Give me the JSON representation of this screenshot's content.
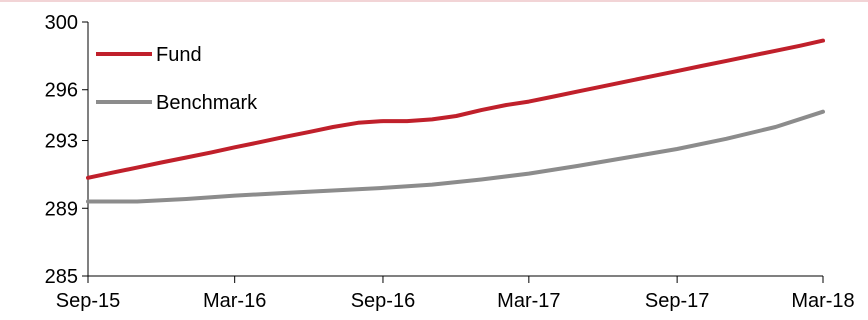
{
  "chart_data": {
    "type": "line",
    "title": "",
    "xlabel": "",
    "ylabel": "",
    "ylim": [
      285,
      300
    ],
    "yticks": [
      {
        "value": 285,
        "label": "285"
      },
      {
        "value": 289,
        "label": "289"
      },
      {
        "value": 293,
        "label": "293"
      },
      {
        "value": 296,
        "label": "296"
      },
      {
        "value": 300,
        "label": "300"
      }
    ],
    "xlim": [
      "2015-09-01",
      "2018-03-01"
    ],
    "xticks": [
      {
        "value": "2015-09-01",
        "label": "Sep-15"
      },
      {
        "value": "2016-03-01",
        "label": "Mar-16"
      },
      {
        "value": "2016-09-01",
        "label": "Sep-16"
      },
      {
        "value": "2017-03-01",
        "label": "Mar-17"
      },
      {
        "value": "2017-09-01",
        "label": "Sep-17"
      },
      {
        "value": "2018-03-01",
        "label": "Mar-18"
      }
    ],
    "grid": false,
    "legend": "top-left",
    "series": [
      {
        "name": "Fund",
        "color": "#c0202b",
        "points": [
          [
            "2015-09-01",
            290.8
          ],
          [
            "2015-10-01",
            291.1
          ],
          [
            "2015-11-01",
            291.4
          ],
          [
            "2015-12-01",
            291.7
          ],
          [
            "2016-01-01",
            292.0
          ],
          [
            "2016-02-01",
            292.3
          ],
          [
            "2016-03-01",
            292.6
          ],
          [
            "2016-04-01",
            292.9
          ],
          [
            "2016-05-01",
            293.2
          ],
          [
            "2016-06-01",
            293.5
          ],
          [
            "2016-07-01",
            293.8
          ],
          [
            "2016-08-01",
            294.05
          ],
          [
            "2016-09-01",
            294.15
          ],
          [
            "2016-10-01",
            294.15
          ],
          [
            "2016-11-01",
            294.25
          ],
          [
            "2016-12-01",
            294.45
          ],
          [
            "2017-01-01",
            294.8
          ],
          [
            "2017-02-01",
            295.1
          ],
          [
            "2017-03-01",
            295.3
          ],
          [
            "2017-04-01",
            295.6
          ],
          [
            "2017-05-01",
            295.9
          ],
          [
            "2017-06-01",
            296.2
          ],
          [
            "2017-07-01",
            296.5
          ],
          [
            "2017-08-01",
            296.8
          ],
          [
            "2017-09-01",
            297.1
          ],
          [
            "2017-10-01",
            297.4
          ],
          [
            "2017-11-01",
            297.7
          ],
          [
            "2017-12-01",
            298.0
          ],
          [
            "2018-01-01",
            298.3
          ],
          [
            "2018-02-01",
            298.6
          ],
          [
            "2018-03-01",
            298.9
          ]
        ]
      },
      {
        "name": "Benchmark",
        "color": "#8c8c8c",
        "points": [
          [
            "2015-09-01",
            289.4
          ],
          [
            "2015-11-01",
            289.4
          ],
          [
            "2016-01-01",
            289.55
          ],
          [
            "2016-03-01",
            289.75
          ],
          [
            "2016-05-01",
            289.9
          ],
          [
            "2016-07-01",
            290.05
          ],
          [
            "2016-09-01",
            290.2
          ],
          [
            "2016-11-01",
            290.4
          ],
          [
            "2017-01-01",
            290.7
          ],
          [
            "2017-03-01",
            291.05
          ],
          [
            "2017-05-01",
            291.5
          ],
          [
            "2017-07-01",
            292.0
          ],
          [
            "2017-09-01",
            292.5
          ],
          [
            "2017-11-01",
            293.1
          ],
          [
            "2018-01-01",
            293.8
          ],
          [
            "2018-03-01",
            294.7
          ]
        ]
      }
    ]
  }
}
